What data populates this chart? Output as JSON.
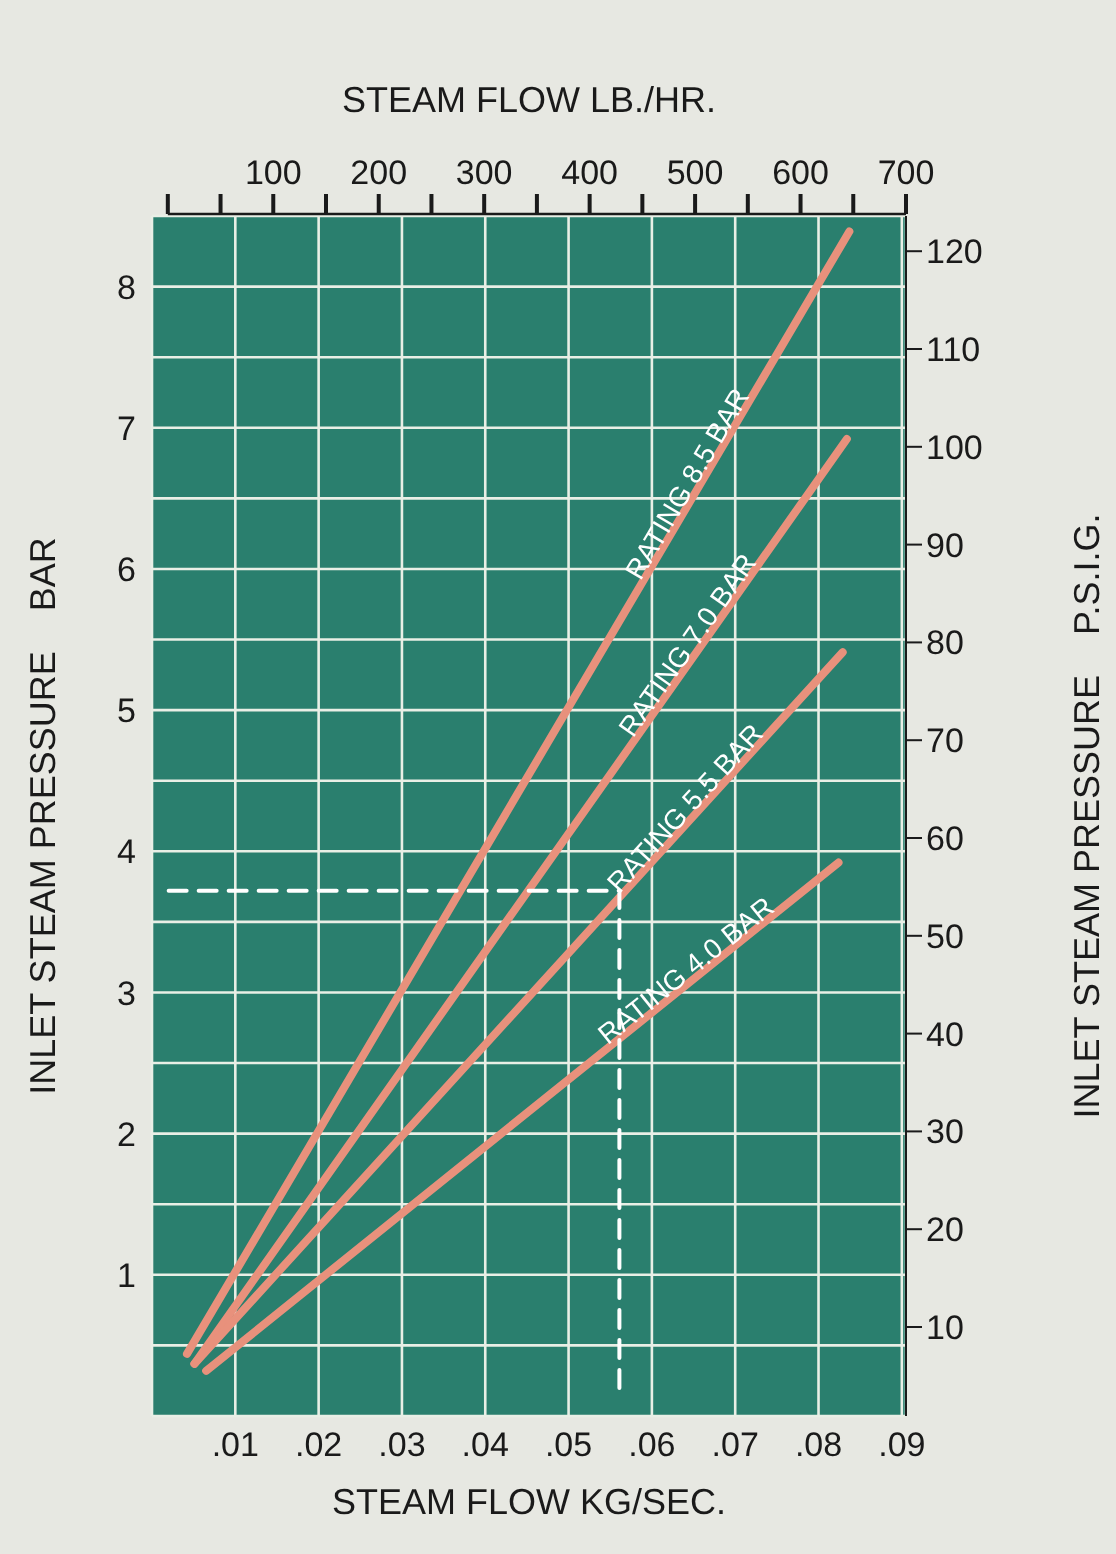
{
  "chart_data": {
    "type": "line",
    "xlabel": "STEAM FLOW KG/SEC.",
    "x2label": "STEAM FLOW LB./HR.",
    "ylabel": "INLET STEAM PRESSURE    BAR",
    "y2label": "INLET STEAM PRESSURE    P.S.I.G.",
    "xlim": [
      0,
      0.0905
    ],
    "xticks": [
      {
        "value": 0.01,
        "label": ".01"
      },
      {
        "value": 0.02,
        "label": ".02"
      },
      {
        "value": 0.03,
        "label": ".03"
      },
      {
        "value": 0.04,
        "label": ".04"
      },
      {
        "value": 0.05,
        "label": ".05"
      },
      {
        "value": 0.06,
        "label": ".06"
      },
      {
        "value": 0.07,
        "label": ".07"
      },
      {
        "value": 0.08,
        "label": ".08"
      },
      {
        "value": 0.09,
        "label": ".09"
      }
    ],
    "x2lim": [
      -15,
      700
    ],
    "x2ticks": [
      {
        "value": 0,
        "label": null
      },
      {
        "value": 50,
        "label": null
      },
      100,
      {
        "value": 150,
        "label": null
      },
      200,
      {
        "value": 250,
        "label": null
      },
      300,
      {
        "value": 350,
        "label": null
      },
      400,
      {
        "value": 450,
        "label": null
      },
      500,
      {
        "value": 550,
        "label": null
      },
      600,
      {
        "value": 650,
        "label": null
      },
      700
    ],
    "ylim": [
      0,
      8.5
    ],
    "yticks": [
      {
        "value": 0.5,
        "label": null
      },
      1,
      {
        "value": 1.5,
        "label": null
      },
      2,
      {
        "value": 2.5,
        "label": null
      },
      3,
      {
        "value": 3.5,
        "label": null
      },
      4,
      {
        "value": 4.5,
        "label": null
      },
      5,
      {
        "value": 5.5,
        "label": null
      },
      6,
      {
        "value": 6.5,
        "label": null
      },
      7,
      {
        "value": 7.5,
        "label": null
      },
      8
    ],
    "y2lim": [
      0.9,
      123.6
    ],
    "y2ticks": [
      10,
      20,
      30,
      40,
      50,
      60,
      70,
      80,
      90,
      100,
      110,
      120
    ],
    "grid": true,
    "marker": "none",
    "series": [
      {
        "name": "RATING 8.5 BAR",
        "color": "#e8917c",
        "x": [
          0.0042,
          0.0837
        ],
        "values": [
          0.44,
          8.39
        ]
      },
      {
        "name": "RATING 7.0 BAR",
        "color": "#e8917c",
        "x": [
          0.0051,
          0.0834
        ],
        "values": [
          0.37,
          6.92
        ]
      },
      {
        "name": "RATING 5.5 BAR",
        "color": "#e8917c",
        "x": [
          0.0051,
          0.0829
        ],
        "values": [
          0.37,
          5.41
        ]
      },
      {
        "name": "RATING 4.0 BAR",
        "color": "#e8917c",
        "x": [
          0.0065,
          0.0824
        ],
        "values": [
          0.32,
          3.92
        ]
      },
      {
        "color": "#ffffff",
        "line_style": "dashed",
        "x": [
          0.002,
          0.0561,
          0.0561
        ],
        "values": [
          3.72,
          3.72,
          0.13
        ]
      }
    ]
  }
}
